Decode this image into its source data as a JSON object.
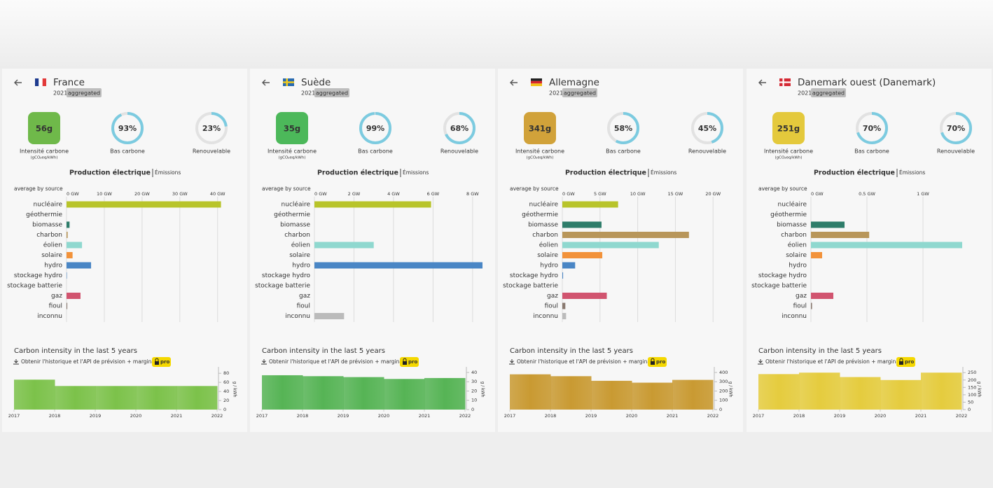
{
  "panels": [
    {
      "country": "France",
      "year": "2021",
      "tag": "aggregated",
      "metrics": {
        "labels": [
          "Intensité carbone",
          "Bas carbone",
          "Renouvelable"
        ],
        "values": [
          56,
          93,
          23
        ],
        "value_labels": [
          "56g",
          "93%",
          "23%"
        ],
        "unit": "(gCO₂eq/kWh)",
        "color": "#6fb94a",
        "ring_color": "#7ccbe0"
      },
      "tabs": [
        "Production électrique",
        "Émissions"
      ],
      "production": {
        "type": "bar",
        "title": "average by source",
        "categories": [
          "nucléaire",
          "géothermie",
          "biomasse",
          "charbon",
          "éolien",
          "solaire",
          "hydro",
          "stockage hydro",
          "stockage batterie",
          "gaz",
          "fioul",
          "inconnu"
        ],
        "values": [
          40.9,
          0,
          0.8,
          0.3,
          4.1,
          1.6,
          6.5,
          0.1,
          0,
          3.7,
          0.2,
          0
        ],
        "colors": [
          "#b8c42a",
          "#9a8bd0",
          "#2e7d6a",
          "#b8965a",
          "#8fd8cf",
          "#f2923a",
          "#4a86c5",
          "#4a86c5",
          "#6a9bd5",
          "#d1546f",
          "#8a7a70",
          "#bbbbbb"
        ],
        "xlim": [
          0,
          44.5
        ],
        "xticks": [
          {
            "value": 0,
            "label": "0 GW"
          },
          {
            "value": 10,
            "label": "10 GW"
          },
          {
            "value": 20,
            "label": "20 GW"
          },
          {
            "value": 30,
            "label": "30 GW"
          },
          {
            "value": 40,
            "label": "40 GW"
          }
        ],
        "grid": true
      },
      "history": {
        "type": "step-area",
        "title": "Carbon intensity in the last 5 years",
        "link": "Obtenir l'historique et l'API de prévision + marginal",
        "badge": "pro",
        "ylabel": "g / kWh",
        "x": [
          2017,
          2018,
          2019,
          2020,
          2021
        ],
        "values": [
          66,
          52,
          52,
          52,
          52
        ],
        "color": "#7cc24a",
        "xlim": [
          2017,
          2022
        ],
        "xticks": [
          2017,
          2018,
          2019,
          2020,
          2021,
          2022
        ],
        "ylim": [
          0,
          88
        ],
        "yticks": [
          0,
          20,
          40,
          60,
          80
        ]
      }
    },
    {
      "country": "Suède",
      "year": "2021",
      "tag": "aggregated",
      "metrics": {
        "labels": [
          "Intensité carbone",
          "Bas carbone",
          "Renouvelable"
        ],
        "values": [
          35,
          99,
          68
        ],
        "value_labels": [
          "35g",
          "99%",
          "68%"
        ],
        "unit": "(gCO₂eq/kWh)",
        "color": "#4cb85a",
        "ring_color": "#7ccbe0"
      },
      "tabs": [
        "Production électrique",
        "Émissions"
      ],
      "production": {
        "type": "bar",
        "title": "average by source",
        "categories": [
          "nucléaire",
          "géothermie",
          "biomasse",
          "charbon",
          "éolien",
          "solaire",
          "hydro",
          "stockage hydro",
          "stockage batterie",
          "gaz",
          "fioul",
          "inconnu"
        ],
        "values": [
          5.9,
          0,
          0,
          0,
          3.0,
          0,
          8.5,
          0,
          0,
          0,
          0,
          1.5
        ],
        "colors": [
          "#b8c42a",
          "#9a8bd0",
          "#2e7d6a",
          "#b8965a",
          "#8fd8cf",
          "#f2923a",
          "#4a86c5",
          "#4a86c5",
          "#6a9bd5",
          "#d1546f",
          "#8a7a70",
          "#bbbbbb"
        ],
        "xlim": [
          0,
          8.5
        ],
        "xticks": [
          {
            "value": 0,
            "label": "0 GW"
          },
          {
            "value": 2,
            "label": "2 GW"
          },
          {
            "value": 4,
            "label": "4 GW"
          },
          {
            "value": 6,
            "label": "6 GW"
          },
          {
            "value": 8,
            "label": "8 GW"
          }
        ],
        "grid": true
      },
      "history": {
        "type": "step-area",
        "title": "Carbon intensity in the last 5 years",
        "link": "Obtenir l'historique et l'API de prévision + marginal",
        "badge": "pro",
        "ylabel": "g / kWh",
        "x": [
          2017,
          2018,
          2019,
          2020,
          2021
        ],
        "values": [
          37,
          36,
          35,
          33,
          34
        ],
        "color": "#56b455",
        "xlim": [
          2017,
          2022
        ],
        "xticks": [
          2017,
          2018,
          2019,
          2020,
          2021,
          2022
        ],
        "ylim": [
          0,
          43
        ],
        "yticks": [
          0,
          10,
          20,
          30,
          40
        ]
      }
    },
    {
      "country": "Allemagne",
      "year": "2021",
      "tag": "aggregated",
      "metrics": {
        "labels": [
          "Intensité carbone",
          "Bas carbone",
          "Renouvelable"
        ],
        "values": [
          341,
          58,
          45
        ],
        "value_labels": [
          "341g",
          "58%",
          "45%"
        ],
        "unit": "(gCO₂eq/kWh)",
        "color": "#d1a23a",
        "ring_color": "#7ccbe0"
      },
      "tabs": [
        "Production électrique",
        "Émissions"
      ],
      "production": {
        "type": "bar",
        "title": "average by source",
        "categories": [
          "nucléaire",
          "géothermie",
          "biomasse",
          "charbon",
          "éolien",
          "solaire",
          "hydro",
          "stockage hydro",
          "stockage batterie",
          "gaz",
          "fioul",
          "inconnu"
        ],
        "values": [
          7.4,
          0,
          5.2,
          16.8,
          12.8,
          5.3,
          1.7,
          0.1,
          0,
          5.9,
          0.4,
          0.5
        ],
        "colors": [
          "#b8c42a",
          "#9a8bd0",
          "#2e7d6a",
          "#b8965a",
          "#8fd8cf",
          "#f2923a",
          "#4a86c5",
          "#4a86c5",
          "#6a9bd5",
          "#d1546f",
          "#8a7a70",
          "#bbbbbb"
        ],
        "xlim": [
          0,
          22.3
        ],
        "xticks": [
          {
            "value": 0,
            "label": "0 GW"
          },
          {
            "value": 5,
            "label": "5 GW"
          },
          {
            "value": 10,
            "label": "10 GW"
          },
          {
            "value": 15,
            "label": "15 GW"
          },
          {
            "value": 20,
            "label": "20 GW"
          }
        ],
        "grid": true
      },
      "history": {
        "type": "step-area",
        "title": "Carbon intensity in the last 5 years",
        "link": "Obtenir l'historique et l'API de prévision + marginal",
        "badge": "pro",
        "ylabel": "g / kWh",
        "x": [
          2017,
          2018,
          2019,
          2020,
          2021
        ],
        "values": [
          380,
          360,
          310,
          290,
          320
        ],
        "color": "#c99a32",
        "xlim": [
          2017,
          2022
        ],
        "xticks": [
          2017,
          2018,
          2019,
          2020,
          2021,
          2022
        ],
        "ylim": [
          0,
          430
        ],
        "yticks": [
          0,
          100,
          200,
          300,
          400
        ]
      }
    },
    {
      "country": "Danemark ouest (Danemark)",
      "year": "2021",
      "tag": "aggregated",
      "metrics": {
        "labels": [
          "Intensité carbone",
          "Bas carbone",
          "Renouvelable"
        ],
        "values": [
          251,
          70,
          70
        ],
        "value_labels": [
          "251g",
          "70%",
          "70%"
        ],
        "unit": "(gCO₂eq/kWh)",
        "color": "#e4c93c",
        "ring_color": "#7ccbe0"
      },
      "tabs": [
        "Production électrique",
        "Émissions"
      ],
      "production": {
        "type": "bar",
        "title": "average by source",
        "categories": [
          "nucléaire",
          "géothermie",
          "biomasse",
          "charbon",
          "éolien",
          "solaire",
          "hydro",
          "stockage hydro",
          "stockage batterie",
          "gaz",
          "fioul",
          "inconnu"
        ],
        "values": [
          0,
          0,
          0.3,
          0.52,
          1.35,
          0.1,
          0,
          0,
          0,
          0.2,
          0.01,
          0
        ],
        "colors": [
          "#b8c42a",
          "#9a8bd0",
          "#2e7d6a",
          "#b8965a",
          "#8fd8cf",
          "#f2923a",
          "#4a86c5",
          "#4a86c5",
          "#6a9bd5",
          "#d1546f",
          "#8a7a70",
          "#bbbbbb"
        ],
        "xlim": [
          0,
          1.5
        ],
        "xticks": [
          {
            "value": 0,
            "label": "0 GW"
          },
          {
            "value": 0.5,
            "label": "0.5 GW"
          },
          {
            "value": 1,
            "label": "1 GW"
          }
        ],
        "grid": true
      },
      "history": {
        "type": "step-area",
        "title": "Carbon intensity in the last 5 years",
        "link": "Obtenir l'historique et l'API de prévision + marginal",
        "badge": "pro",
        "ylabel": "g / kWh",
        "x": [
          2017,
          2018,
          2019,
          2020,
          2021
        ],
        "values": [
          240,
          250,
          220,
          200,
          250
        ],
        "color": "#e5cc3e",
        "xlim": [
          2017,
          2022
        ],
        "xticks": [
          2017,
          2018,
          2019,
          2020,
          2021,
          2022
        ],
        "ylim": [
          0,
          270
        ],
        "yticks": [
          0,
          50,
          100,
          150,
          200,
          250
        ]
      }
    }
  ]
}
